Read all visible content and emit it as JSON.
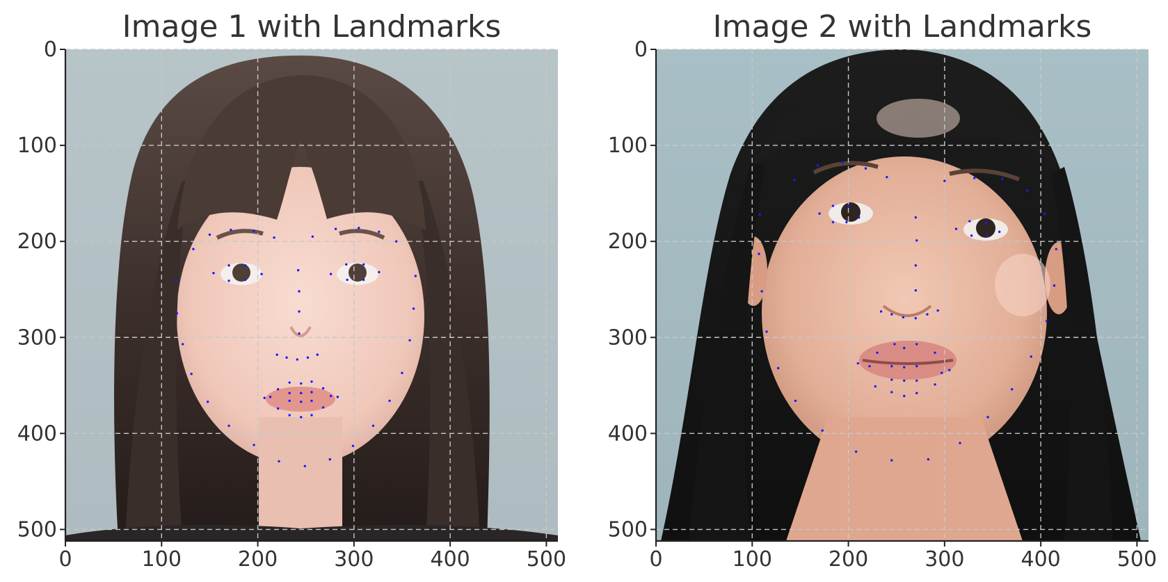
{
  "chart_data": [
    {
      "type": "scatter",
      "title": "Image 1 with Landmarks",
      "background": "photo of a young woman with long dark brown hair and bangs, grey-blue backdrop",
      "xlim": [
        0,
        512
      ],
      "ylim": [
        512,
        0
      ],
      "y_inverted": true,
      "xticks": [
        0,
        100,
        200,
        300,
        400,
        500
      ],
      "yticks": [
        0,
        100,
        200,
        300,
        400,
        500
      ],
      "grid": true,
      "marker_color": "#1a1aff",
      "series": [
        {
          "points": [
            [
              115,
              240
            ],
            [
              116,
              275
            ],
            [
              122,
              307
            ],
            [
              131,
              338
            ],
            [
              148,
              367
            ],
            [
              170,
              392
            ],
            [
              196,
              412
            ],
            [
              222,
              429
            ],
            [
              249,
              434
            ],
            [
              275,
              427
            ],
            [
              299,
              413
            ],
            [
              320,
              392
            ],
            [
              337,
              366
            ],
            [
              350,
              337
            ],
            [
              358,
              303
            ],
            [
              362,
              270
            ],
            [
              364,
              236
            ],
            [
              133,
              208
            ],
            [
              150,
              193
            ],
            [
              172,
              188
            ],
            [
              196,
              189
            ],
            [
              217,
              196
            ],
            [
              257,
              195
            ],
            [
              281,
              187
            ],
            [
              305,
              186
            ],
            [
              326,
              190
            ],
            [
              344,
              200
            ],
            [
              242,
              230
            ],
            [
              243,
              252
            ],
            [
              243,
              273
            ],
            [
              243,
              296
            ],
            [
              220,
              318
            ],
            [
              230,
              321
            ],
            [
              241,
              323
            ],
            [
              252,
              321
            ],
            [
              262,
              318
            ],
            [
              154,
              233
            ],
            [
              170,
              225
            ],
            [
              187,
              225
            ],
            [
              204,
              234
            ],
            [
              187,
              240
            ],
            [
              170,
              241
            ],
            [
              276,
              234
            ],
            [
              292,
              224
            ],
            [
              310,
              224
            ],
            [
              326,
              232
            ],
            [
              310,
              240
            ],
            [
              293,
              240
            ],
            [
              207,
              363
            ],
            [
              221,
              354
            ],
            [
              233,
              347
            ],
            [
              245,
              348
            ],
            [
              256,
              346
            ],
            [
              268,
              353
            ],
            [
              283,
              362
            ],
            [
              268,
              373
            ],
            [
              256,
              381
            ],
            [
              245,
              383
            ],
            [
              233,
              381
            ],
            [
              221,
              374
            ],
            [
              213,
              362
            ],
            [
              233,
              358
            ],
            [
              245,
              358
            ],
            [
              256,
              357
            ],
            [
              276,
              361
            ],
            [
              256,
              366
            ],
            [
              245,
              367
            ],
            [
              233,
              366
            ]
          ]
        }
      ]
    },
    {
      "type": "scatter",
      "title": "Image 2 with Landmarks",
      "background": "photo of a young woman with long black hair and bangs, blue-grey backdrop",
      "xlim": [
        0,
        512
      ],
      "ylim": [
        512,
        0
      ],
      "y_inverted": true,
      "xticks": [
        0,
        100,
        200,
        300,
        400,
        500
      ],
      "yticks": [
        0,
        100,
        200,
        300,
        400,
        500
      ],
      "grid": true,
      "marker_color": "#1a1aff",
      "series": [
        {
          "points": [
            [
              108,
              172
            ],
            [
              107,
              213
            ],
            [
              110,
              252
            ],
            [
              115,
              294
            ],
            [
              127,
              332
            ],
            [
              145,
              366
            ],
            [
              173,
              397
            ],
            [
              208,
              419
            ],
            [
              245,
              428
            ],
            [
              283,
              427
            ],
            [
              316,
              410
            ],
            [
              345,
              383
            ],
            [
              370,
              354
            ],
            [
              390,
              320
            ],
            [
              406,
              283
            ],
            [
              414,
              246
            ],
            [
              416,
              208
            ],
            [
              144,
              136
            ],
            [
              168,
              121
            ],
            [
              194,
              118
            ],
            [
              218,
              124
            ],
            [
              240,
              133
            ],
            [
              300,
              137
            ],
            [
              331,
              134
            ],
            [
              360,
              135
            ],
            [
              386,
              147
            ],
            [
              404,
              171
            ],
            [
              270,
              175
            ],
            [
              271,
              199
            ],
            [
              270,
              225
            ],
            [
              270,
              251
            ],
            [
              234,
              273
            ],
            [
              245,
              276
            ],
            [
              257,
              279
            ],
            [
              270,
              280
            ],
            [
              282,
              276
            ],
            [
              293,
              272
            ],
            [
              170,
              171
            ],
            [
              184,
              163
            ],
            [
              200,
              163
            ],
            [
              211,
              175
            ],
            [
              198,
              180
            ],
            [
              184,
              180
            ],
            [
              312,
              187
            ],
            [
              326,
              179
            ],
            [
              343,
              181
            ],
            [
              357,
              190
            ],
            [
              344,
              194
            ],
            [
              328,
              194
            ],
            [
              210,
              327
            ],
            [
              230,
              316
            ],
            [
              248,
              307
            ],
            [
              258,
              311
            ],
            [
              271,
              307
            ],
            [
              290,
              316
            ],
            [
              305,
              334
            ],
            [
              290,
              349
            ],
            [
              271,
              358
            ],
            [
              258,
              361
            ],
            [
              245,
              357
            ],
            [
              228,
              351
            ],
            [
              222,
              330
            ],
            [
              245,
              330
            ],
            [
              258,
              331
            ],
            [
              271,
              330
            ],
            [
              297,
              337
            ],
            [
              271,
              345
            ],
            [
              258,
              345
            ],
            [
              245,
              344
            ]
          ]
        }
      ]
    }
  ]
}
